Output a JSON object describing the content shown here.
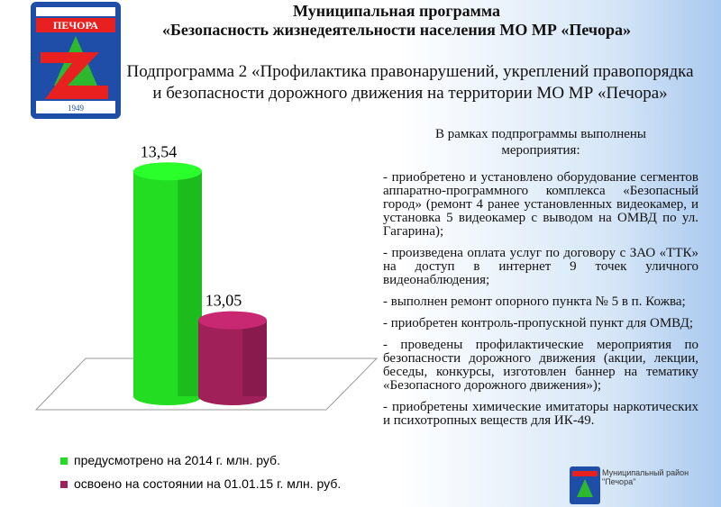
{
  "header": {
    "title": "Муниципальная программа",
    "subtitle": "«Безопасность жизнедеятельности населения  МО МР «Печора»",
    "subprogram": "Подпрограмма 2 «Профилактика правонарушений, укреплений правопорядка и безопасности дорожного движения на территории МО МР «Печора»"
  },
  "chart_data": {
    "type": "bar",
    "categories": [
      null
    ],
    "series": [
      {
        "name": "предусмотрено на 2014 г. млн. руб.",
        "color": "#22dd22",
        "values": [
          13.54
        ],
        "value_labels": [
          "13,54"
        ]
      },
      {
        "name": "освоено на состоянии на 01.01.15 г. млн. руб.",
        "color": "#a0205a",
        "values": [
          13.05
        ],
        "value_labels": [
          "13,05"
        ]
      }
    ],
    "ylim": [
      12.8,
      13.6
    ]
  },
  "activities": {
    "heading": "В рамках подпрограммы выполнены мероприятия:",
    "items": [
      "- приобретено и установлено оборудование сегментов аппаратно-программного комплекса «Безопасный город» (ремонт 4 ранее установленных видеокамер, и установка 5 видеокамер с выводом на ОМВД по ул. Гагарина);",
      "- произведена оплата услуг по договору с ЗАО «ТТК» на доступ в интернет 9 точек уличного видеонаблюдения;",
      "- выполнен ремонт  опорного пункта № 5 в п. Кожва;",
      "- приобретен контроль-пропускной пункт для ОМВД;",
      "- проведены профилактические мероприятия по безопасности дорожного движения (акции, лекции, беседы, конкурсы, изготовлен баннер на тематику «Безопасного дорожного движения»);",
      "- приобретены химические имитаторы наркотических и психотропных веществ для ИК-49."
    ]
  },
  "logo": {
    "text": "ПЕЧОРА",
    "year": "1949",
    "caption": "Муниципальный район \"Печора\""
  }
}
